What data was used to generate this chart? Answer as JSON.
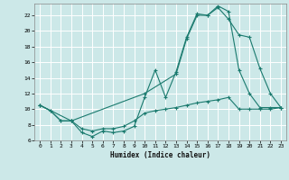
{
  "background_color": "#cce8e8",
  "grid_color": "#ffffff",
  "line_color": "#1a7a6e",
  "xlabel": "Humidex (Indice chaleur)",
  "xlim": [
    -0.5,
    23.5
  ],
  "ylim": [
    6,
    23.5
  ],
  "yticks": [
    6,
    8,
    10,
    12,
    14,
    16,
    18,
    20,
    22
  ],
  "xticks": [
    0,
    1,
    2,
    3,
    4,
    5,
    6,
    7,
    8,
    9,
    10,
    11,
    12,
    13,
    14,
    15,
    16,
    17,
    18,
    19,
    20,
    21,
    22,
    23
  ],
  "series1_x": [
    0,
    1,
    2,
    3,
    4,
    5,
    6,
    7,
    8,
    9,
    10,
    11,
    12,
    13,
    14,
    15,
    16,
    17,
    18,
    19,
    20,
    21,
    22,
    23
  ],
  "series1_y": [
    10.5,
    9.8,
    8.5,
    8.5,
    7.0,
    6.5,
    7.2,
    7.0,
    7.2,
    7.8,
    11.5,
    15.0,
    11.5,
    14.8,
    19.2,
    22.2,
    22.0,
    23.2,
    22.5,
    15.0,
    12.0,
    10.2,
    10.2,
    10.2
  ],
  "series2_x": [
    0,
    1,
    2,
    3,
    4,
    5,
    6,
    7,
    8,
    9,
    10,
    11,
    12,
    13,
    14,
    15,
    16,
    17,
    18,
    19,
    20,
    21,
    22,
    23
  ],
  "series2_y": [
    10.5,
    9.8,
    8.5,
    8.5,
    7.5,
    7.2,
    7.5,
    7.5,
    7.8,
    8.5,
    9.5,
    9.8,
    10.0,
    10.2,
    10.5,
    10.8,
    11.0,
    11.2,
    11.5,
    10.0,
    10.0,
    10.0,
    10.0,
    10.2
  ],
  "series3_x": [
    0,
    3,
    10,
    13,
    14,
    15,
    16,
    17,
    18,
    19,
    20,
    21,
    22,
    23
  ],
  "series3_y": [
    10.5,
    8.5,
    12.0,
    14.5,
    19.0,
    22.0,
    22.0,
    23.0,
    21.5,
    19.5,
    19.2,
    15.2,
    12.0,
    10.2
  ]
}
